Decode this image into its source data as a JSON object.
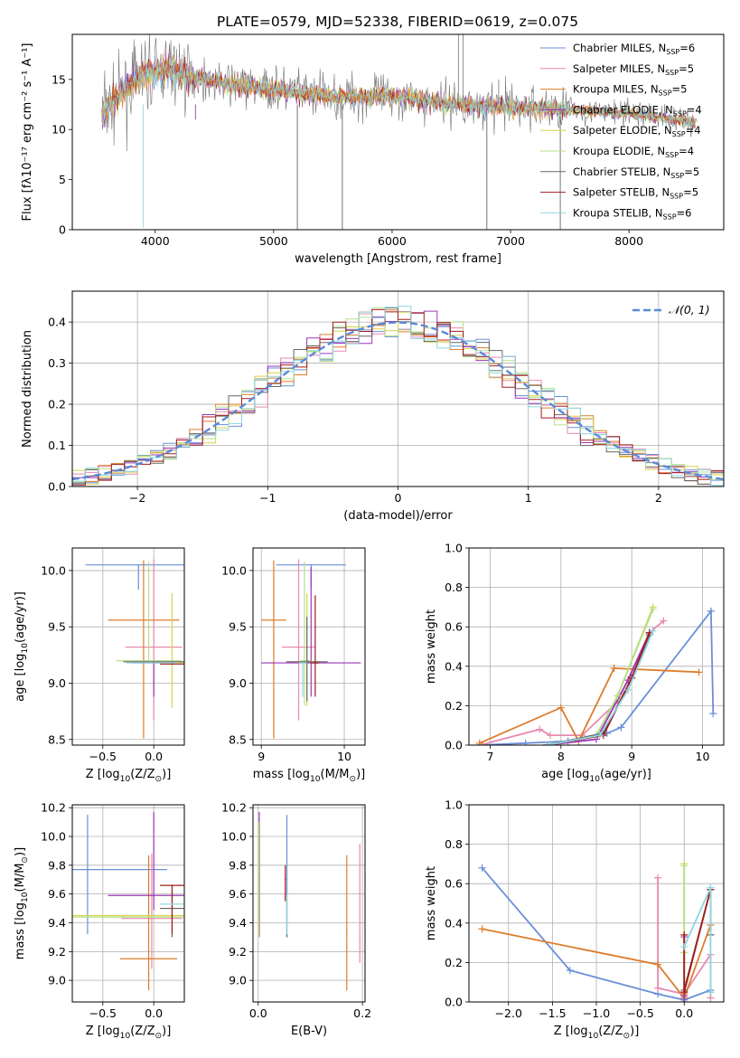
{
  "figure": {
    "title": "PLATE=0579, MJD=52338, FIBERID=0619, z=0.075"
  },
  "colors": {
    "series": [
      "#6a8fd8",
      "#e889b0",
      "#dd7c2a",
      "#9b37b8",
      "#d6d34a",
      "#b4e08a",
      "#666666",
      "#a41b1b",
      "#8ed6e0"
    ]
  },
  "chart_data": [
    {
      "type": "line",
      "panel": "spectrum",
      "xlabel": "wavelength [Angstrom, rest frame]",
      "ylabel": "Flux [f$_\\lambda$10$^{-17}$ erg cm$^{-2}$ s$^{-1}$ A$^{-1}$]",
      "ylabel_display": "Flux [fλ10⁻¹⁷ erg cm⁻² s⁻¹ A⁻¹]",
      "xlim": [
        3300,
        8800
      ],
      "ylim": [
        0,
        19.5
      ],
      "xticks": [
        4000,
        5000,
        6000,
        7000,
        8000
      ],
      "yticks": [
        0,
        5,
        10,
        15
      ],
      "grid": false,
      "legend_position": "top-right",
      "series": [
        {
          "name": "Chabrier MILES, N$_{SSP}$=6",
          "display": "Chabrier MILES, N",
          "sub": "SSP",
          "post": "=6"
        },
        {
          "name": "Salpeter MILES, N$_{SSP}$=5",
          "display": "Salpeter MILES, N",
          "sub": "SSP",
          "post": "=5"
        },
        {
          "name": "Kroupa MILES, N$_{SSP}$=5",
          "display": "Kroupa MILES, N",
          "sub": "SSP",
          "post": "=5"
        },
        {
          "name": "Chabrier ELODIE, N$_{SSP}$=4",
          "display": "Chabrier ELODIE, N",
          "sub": "SSP",
          "post": "=4"
        },
        {
          "name": "Salpeter ELODIE, N$_{SSP}$=4",
          "display": "Salpeter ELODIE, N",
          "sub": "SSP",
          "post": "=4"
        },
        {
          "name": "Kroupa ELODIE, N$_{SSP}$=4",
          "display": "Kroupa ELODIE, N",
          "sub": "SSP",
          "post": "=4"
        },
        {
          "name": "Chabrier STELIB, N$_{SSP}$=5",
          "display": "Chabrier STELIB, N",
          "sub": "SSP",
          "post": "=5"
        },
        {
          "name": "Salpeter STELIB, N$_{SSP}$=5",
          "display": "Salpeter STELIB, N",
          "sub": "SSP",
          "post": "=5"
        },
        {
          "name": "Kroupa STELIB, N$_{SSP}$=6",
          "display": "Kroupa STELIB, N",
          "sub": "SSP",
          "post": "=6"
        }
      ],
      "continuum_x": [
        3550,
        3700,
        3900,
        4100,
        4300,
        4600,
        5000,
        5500,
        6000,
        6500,
        7000,
        7500,
        8000,
        8500
      ],
      "continuum_y": [
        11.5,
        13.5,
        15.5,
        16.2,
        15.3,
        14.6,
        14.0,
        13.3,
        13.3,
        12.6,
        12.2,
        12.0,
        11.6,
        10.8
      ]
    },
    {
      "type": "line",
      "panel": "residual-histogram",
      "xlabel": "(data-model)/error",
      "ylabel": "Normed distribution",
      "xlim": [
        -2.5,
        2.5
      ],
      "ylim": [
        0,
        0.475
      ],
      "xticks": [
        -2,
        -1,
        0,
        1,
        2
      ],
      "yticks": [
        0.0,
        0.1,
        0.2,
        0.3,
        0.4
      ],
      "grid": true,
      "legend_position": "top-right",
      "legend": "N(0,1)",
      "bin_width": 0.1
    },
    {
      "type": "scatter",
      "panel": "age-vs-metallicity",
      "xlabel": "Z [log$_{10}$(Z/Z$_\\odot$)]",
      "ylabel": "age  [log$_{10}$(age/yr)]",
      "xlim": [
        -0.8,
        0.3
      ],
      "ylim": [
        8.45,
        10.2
      ],
      "xticks": [
        -0.5,
        0.0
      ],
      "yticks": [
        8.5,
        9.0,
        9.5,
        10.0
      ],
      "grid": true,
      "points": [
        {
          "x": -0.15,
          "y": 10.05,
          "xerr": 0.52,
          "yerr_low": 0.22,
          "yerr_high": 0.0
        },
        {
          "x": 0.0,
          "y": 9.32,
          "xerr": 0.28,
          "yerr_low": 0.65,
          "yerr_high": 0.78
        },
        {
          "x": -0.1,
          "y": 9.56,
          "xerr": 0.35,
          "yerr_low": 1.05,
          "yerr_high": 0.53
        },
        {
          "x": 0.0,
          "y": 9.18,
          "xerr": 0.2,
          "yerr_low": 0.3,
          "yerr_high": 0.0
        },
        {
          "x": 0.18,
          "y": 9.18,
          "xerr": 0.12,
          "yerr_low": 0.4,
          "yerr_high": 0.62
        },
        {
          "x": -0.05,
          "y": 9.2,
          "xerr": 0.32,
          "yerr_low": 0.0,
          "yerr_high": 0.88
        },
        {
          "x": 0.0,
          "y": 9.19,
          "xerr": 0.3,
          "yerr_low": 0.0,
          "yerr_high": 0.0
        },
        {
          "x": 0.18,
          "y": 9.17,
          "xerr": 0.12,
          "yerr_low": 0.0,
          "yerr_high": 0.0
        },
        {
          "x": -0.02,
          "y": 9.18,
          "xerr": 0.25,
          "yerr_low": 0.0,
          "yerr_high": 0.0
        }
      ]
    },
    {
      "type": "scatter",
      "panel": "age-vs-mass",
      "xlabel": "mass [log$_{10}$(M/M$_\\odot$)]",
      "ylabel": "",
      "xlim": [
        8.9,
        10.25
      ],
      "ylim": [
        8.45,
        10.2
      ],
      "xticks": [
        9,
        10
      ],
      "yticks": [
        8.5,
        9.0,
        9.5,
        10.0
      ],
      "grid": true,
      "points": [
        {
          "x": 9.6,
          "y": 10.05,
          "xerr": 0.42,
          "yerr_low": 0.2,
          "yerr_high": 0.0
        },
        {
          "x": 9.45,
          "y": 9.32,
          "xerr": 0.2,
          "yerr_low": 0.65,
          "yerr_high": 0.78
        },
        {
          "x": 9.15,
          "y": 9.56,
          "xerr": 0.15,
          "yerr_low": 1.05,
          "yerr_high": 0.53
        },
        {
          "x": 9.6,
          "y": 9.18,
          "xerr": 0.6,
          "yerr_low": 0.3,
          "yerr_high": 0.85
        },
        {
          "x": 9.55,
          "y": 9.2,
          "xerr": 0.05,
          "yerr_low": 0.4,
          "yerr_high": 0.6
        },
        {
          "x": 9.52,
          "y": 9.2,
          "xerr": 0.05,
          "yerr_low": 0.4,
          "yerr_high": 0.88
        },
        {
          "x": 9.55,
          "y": 9.19,
          "xerr": 0.25,
          "yerr_low": 0.35,
          "yerr_high": 0.4
        },
        {
          "x": 9.65,
          "y": 9.18,
          "xerr": 0.05,
          "yerr_low": 0.3,
          "yerr_high": 0.6
        },
        {
          "x": 9.5,
          "y": 9.18,
          "xerr": 0.05,
          "yerr_low": 0.3,
          "yerr_high": 0.0
        }
      ]
    },
    {
      "type": "line",
      "panel": "mass-weight-vs-age",
      "xlabel": "age  [log$_{10}$(age/yr)]",
      "ylabel": "mass weight",
      "xlim": [
        6.7,
        10.3
      ],
      "ylim": [
        0,
        1.0
      ],
      "xticks": [
        7,
        8,
        9,
        10
      ],
      "yticks": [
        0.0,
        0.2,
        0.4,
        0.6,
        0.8,
        1.0
      ],
      "grid": true,
      "series": [
        {
          "x": [
            6.85,
            7.5,
            8.1,
            8.65,
            8.85,
            10.12,
            10.15
          ],
          "y": [
            0.0,
            0.01,
            0.02,
            0.06,
            0.09,
            0.68,
            0.16
          ]
        },
        {
          "x": [
            6.85,
            7.7,
            7.85,
            8.3,
            8.8,
            9.25,
            9.45
          ],
          "y": [
            0.0,
            0.08,
            0.05,
            0.05,
            0.22,
            0.57,
            0.63
          ]
        },
        {
          "x": [
            6.85,
            8.0,
            8.25,
            8.75,
            9.95
          ],
          "y": [
            0.01,
            0.19,
            0.02,
            0.39,
            0.37
          ]
        },
        {
          "x": [
            7.8,
            8.5,
            8.95,
            9.25
          ],
          "y": [
            0.0,
            0.03,
            0.33,
            0.57
          ]
        },
        {
          "x": [
            7.8,
            8.5,
            8.8,
            9.3
          ],
          "y": [
            0.0,
            0.05,
            0.25,
            0.7
          ]
        },
        {
          "x": [
            7.8,
            8.5,
            8.8,
            9.3
          ],
          "y": [
            0.0,
            0.05,
            0.25,
            0.69
          ]
        },
        {
          "x": [
            7.8,
            8.6,
            9.0,
            9.25
          ],
          "y": [
            0.0,
            0.06,
            0.34,
            0.56
          ]
        },
        {
          "x": [
            7.8,
            8.6,
            9.0,
            9.25
          ],
          "y": [
            0.0,
            0.05,
            0.34,
            0.57
          ]
        },
        {
          "x": [
            7.8,
            8.55,
            8.95,
            9.3
          ],
          "y": [
            0.0,
            0.05,
            0.28,
            0.58
          ]
        }
      ]
    },
    {
      "type": "scatter",
      "panel": "mass-vs-metallicity",
      "xlabel": "Z [log$_{10}$(Z/Z$_\\odot$)]",
      "ylabel": "mass [log$_{10}$(M/M$_\\odot$)]",
      "xlim": [
        -0.8,
        0.3
      ],
      "ylim": [
        8.85,
        10.22
      ],
      "xticks": [
        -0.5,
        0.0
      ],
      "yticks": [
        9.0,
        9.2,
        9.4,
        9.6,
        9.8,
        10.0,
        10.2
      ],
      "grid": true,
      "points": [
        {
          "x": -0.65,
          "y": 9.77,
          "xerr": 0.78,
          "yerr_low": 0.45,
          "yerr_high": 0.38
        },
        {
          "x": -0.02,
          "y": 9.43,
          "xerr": 0.3,
          "yerr_low": 0.35,
          "yerr_high": 0.45
        },
        {
          "x": -0.05,
          "y": 9.15,
          "xerr": 0.28,
          "yerr_low": 0.22,
          "yerr_high": 0.72
        },
        {
          "x": 0.0,
          "y": 9.59,
          "xerr": 0.45,
          "yerr_low": 0.1,
          "yerr_high": 0.58
        },
        {
          "x": -0.3,
          "y": 9.45,
          "xerr": 0.65,
          "yerr_low": 0.0,
          "yerr_high": 0.0
        },
        {
          "x": -0.3,
          "y": 9.44,
          "xerr": 0.65,
          "yerr_low": 0.0,
          "yerr_high": 0.0
        },
        {
          "x": 0.18,
          "y": 9.5,
          "xerr": 0.12,
          "yerr_low": 0.2,
          "yerr_high": 0.16
        },
        {
          "x": 0.18,
          "y": 9.66,
          "xerr": 0.12,
          "yerr_low": 0.34,
          "yerr_high": 0.0
        },
        {
          "x": 0.18,
          "y": 9.53,
          "xerr": 0.12,
          "yerr_low": 0.0,
          "yerr_high": 0.0
        }
      ]
    },
    {
      "type": "scatter",
      "panel": "mass-vs-extinction",
      "xlabel": "E(B-V)",
      "ylabel": "",
      "xlim": [
        -0.01,
        0.205
      ],
      "ylim": [
        8.85,
        10.22
      ],
      "xticks": [
        0.0,
        0.2
      ],
      "yticks": [
        9.0,
        9.2,
        9.4,
        9.6,
        9.8,
        10.0,
        10.2
      ],
      "grid": true,
      "points": [
        {
          "x": 0.055,
          "y": 9.6,
          "xerr": 0.0,
          "yerr_low": 0.3,
          "yerr_high": 0.55
        },
        {
          "x": 0.195,
          "y": 9.3,
          "xerr": 0.0,
          "yerr_low": 0.18,
          "yerr_high": 0.65
        },
        {
          "x": 0.17,
          "y": 9.35,
          "xerr": 0.0,
          "yerr_low": 0.42,
          "yerr_high": 0.52
        },
        {
          "x": 0.002,
          "y": 9.7,
          "xerr": 0.0,
          "yerr_low": 0.4,
          "yerr_high": 0.47
        },
        {
          "x": 0.001,
          "y": 9.8,
          "xerr": 0.0,
          "yerr_low": 0.5,
          "yerr_high": 0.3
        },
        {
          "x": 0.0,
          "y": 9.7,
          "xerr": 0.0,
          "yerr_low": 0.3,
          "yerr_high": 0.4
        },
        {
          "x": 0.055,
          "y": 9.5,
          "xerr": 0.0,
          "yerr_low": 0.2,
          "yerr_high": 0.1
        },
        {
          "x": 0.052,
          "y": 9.7,
          "xerr": 0.0,
          "yerr_low": 0.15,
          "yerr_high": 0.1
        },
        {
          "x": 0.055,
          "y": 9.5,
          "xerr": 0.0,
          "yerr_low": 0.18,
          "yerr_high": 0.1
        }
      ]
    },
    {
      "type": "line",
      "panel": "mass-weight-vs-metallicity",
      "xlabel": "Z [log$_{10}$(Z/Z$_\\odot$)]",
      "ylabel": "mass weight",
      "xlim": [
        -2.45,
        0.45
      ],
      "ylim": [
        0,
        1.0
      ],
      "xticks": [
        -2.0,
        -1.5,
        -1.0,
        -0.5,
        0.0
      ],
      "yticks": [
        0.0,
        0.2,
        0.4,
        0.6,
        0.8,
        1.0
      ],
      "grid": true,
      "series": [
        {
          "x": [
            -2.3,
            -1.3,
            -0.3,
            0.0,
            0.3,
            0.3
          ],
          "y": [
            0.68,
            0.16,
            0.04,
            0.01,
            0.06,
            0.05
          ]
        },
        {
          "x": [
            -0.3,
            -0.3,
            0.0,
            0.3,
            0.3
          ],
          "y": [
            0.63,
            0.07,
            0.04,
            0.24,
            0.02
          ]
        },
        {
          "x": [
            -2.3,
            -0.3,
            0.0,
            0.3
          ],
          "y": [
            0.37,
            0.19,
            0.02,
            0.39
          ]
        },
        {
          "x": [
            0.0,
            0.0,
            0.0
          ],
          "y": [
            0.33,
            0.03,
            0.0
          ]
        },
        {
          "x": [
            0.0,
            0.0,
            0.0
          ],
          "y": [
            0.7,
            0.25,
            0.05
          ]
        },
        {
          "x": [
            0.0,
            0.0,
            0.0
          ],
          "y": [
            0.69,
            0.25,
            0.05
          ]
        },
        {
          "x": [
            0.0,
            0.3,
            0.3
          ],
          "y": [
            0.06,
            0.57,
            0.34
          ]
        },
        {
          "x": [
            0.0,
            0.0,
            0.3
          ],
          "y": [
            0.34,
            0.05,
            0.57
          ]
        },
        {
          "x": [
            0.0,
            0.3,
            0.3
          ],
          "y": [
            0.28,
            0.58,
            0.05
          ]
        }
      ]
    }
  ]
}
